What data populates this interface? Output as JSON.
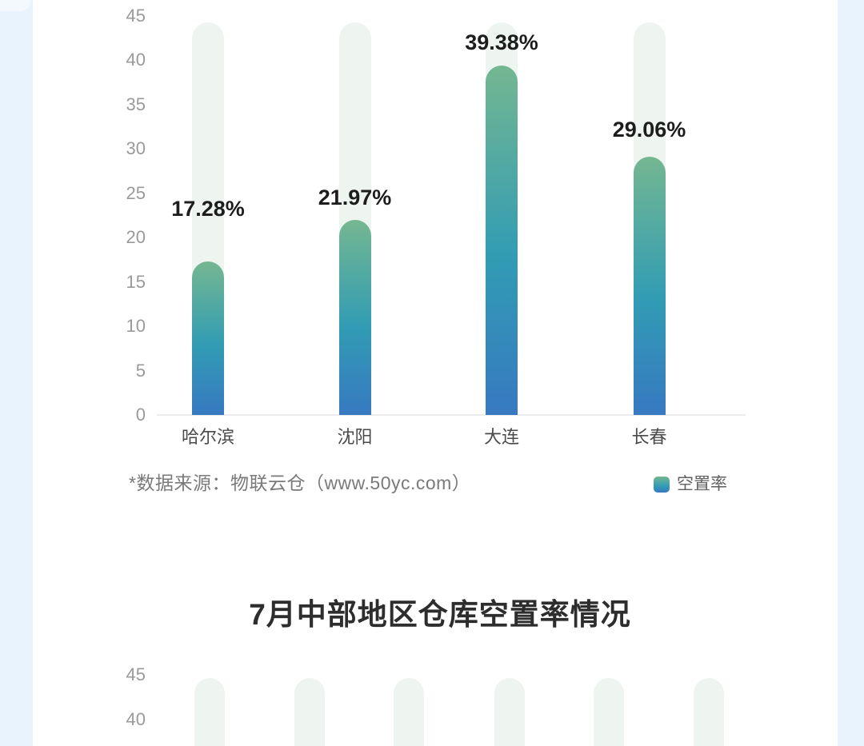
{
  "source_note": "*数据来源：物联云仓（www.50yc.com）",
  "legend": {
    "label": "空置率"
  },
  "colors": {
    "page_background": "#e8f3fd",
    "card_background": "#ffffff",
    "bar_gradient_top": "#74b791",
    "bar_gradient_mid": "#319cb4",
    "bar_gradient_bottom": "#3779c1",
    "track": "#eef4ef",
    "axis_line": "#ececec",
    "tick_label": "#9a9a9a",
    "category_label": "#4a4a4a",
    "value_label": "#1d1d1d",
    "source_text": "#7a7a7a",
    "legend_text": "#616161",
    "title_text": "#2d2d2d"
  },
  "chart_data": [
    {
      "type": "bar",
      "title": "",
      "series_name": "空置率",
      "categories": [
        "哈尔滨",
        "沈阳",
        "大连",
        "长春"
      ],
      "category_keys": [
        "harbin",
        "shenyang",
        "dalian",
        "changchun"
      ],
      "values": [
        17.28,
        21.97,
        39.38,
        29.06
      ],
      "data_labels": [
        "17.28%",
        "21.97%",
        "39.38%",
        "29.06%"
      ],
      "xlabel": "",
      "ylabel": "",
      "ylim": [
        0,
        45
      ],
      "yticks": [
        0,
        5,
        10,
        15,
        20,
        25,
        30,
        35,
        40,
        45
      ],
      "grid": false,
      "legend_position": "bottom-right",
      "bar_style": "rounded-top gradient bars over pale full-height tracks"
    },
    {
      "type": "bar",
      "title": "7月中部地区仓库空置率情况",
      "series_name": "空置率",
      "categories": [],
      "values": [],
      "ylim": [
        0,
        45
      ],
      "yticks_visible": [
        45,
        40
      ],
      "tracks_visible": 6,
      "grid": false,
      "note_visible_portion": "top of chart only; cut off at bottom edge"
    }
  ]
}
